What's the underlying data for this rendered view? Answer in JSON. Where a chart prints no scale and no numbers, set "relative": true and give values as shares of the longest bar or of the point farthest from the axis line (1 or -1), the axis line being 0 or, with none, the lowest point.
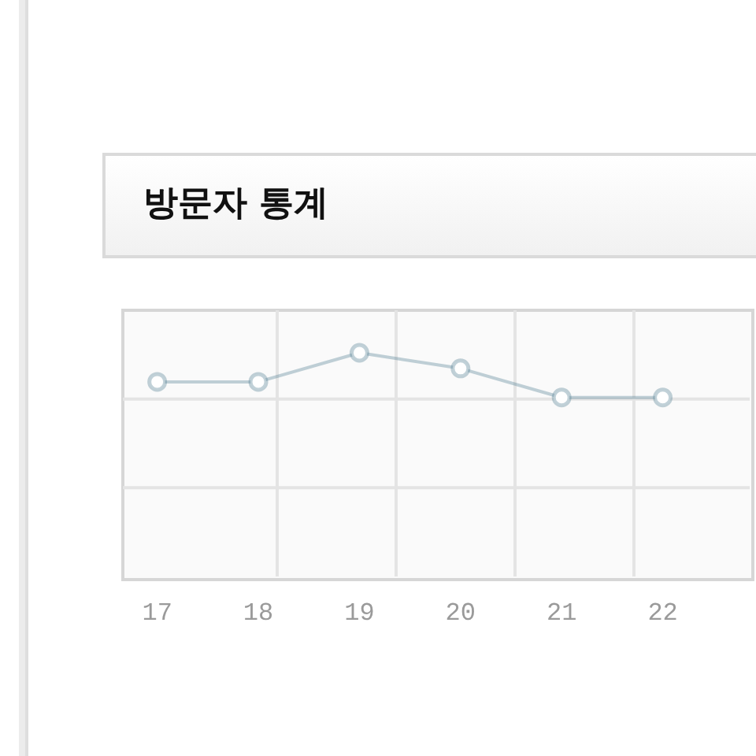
{
  "chart_data": {
    "type": "line",
    "title": "방문자 통계",
    "categories": [
      "17",
      "18",
      "19",
      "20",
      "21",
      "22"
    ],
    "series": [
      {
        "color": "#5b8799",
        "values": [
          0.87,
          0.87,
          1,
          0.93,
          0.8,
          0.8
        ]
      }
    ],
    "relative": true,
    "grid": true,
    "marker": "circle"
  }
}
